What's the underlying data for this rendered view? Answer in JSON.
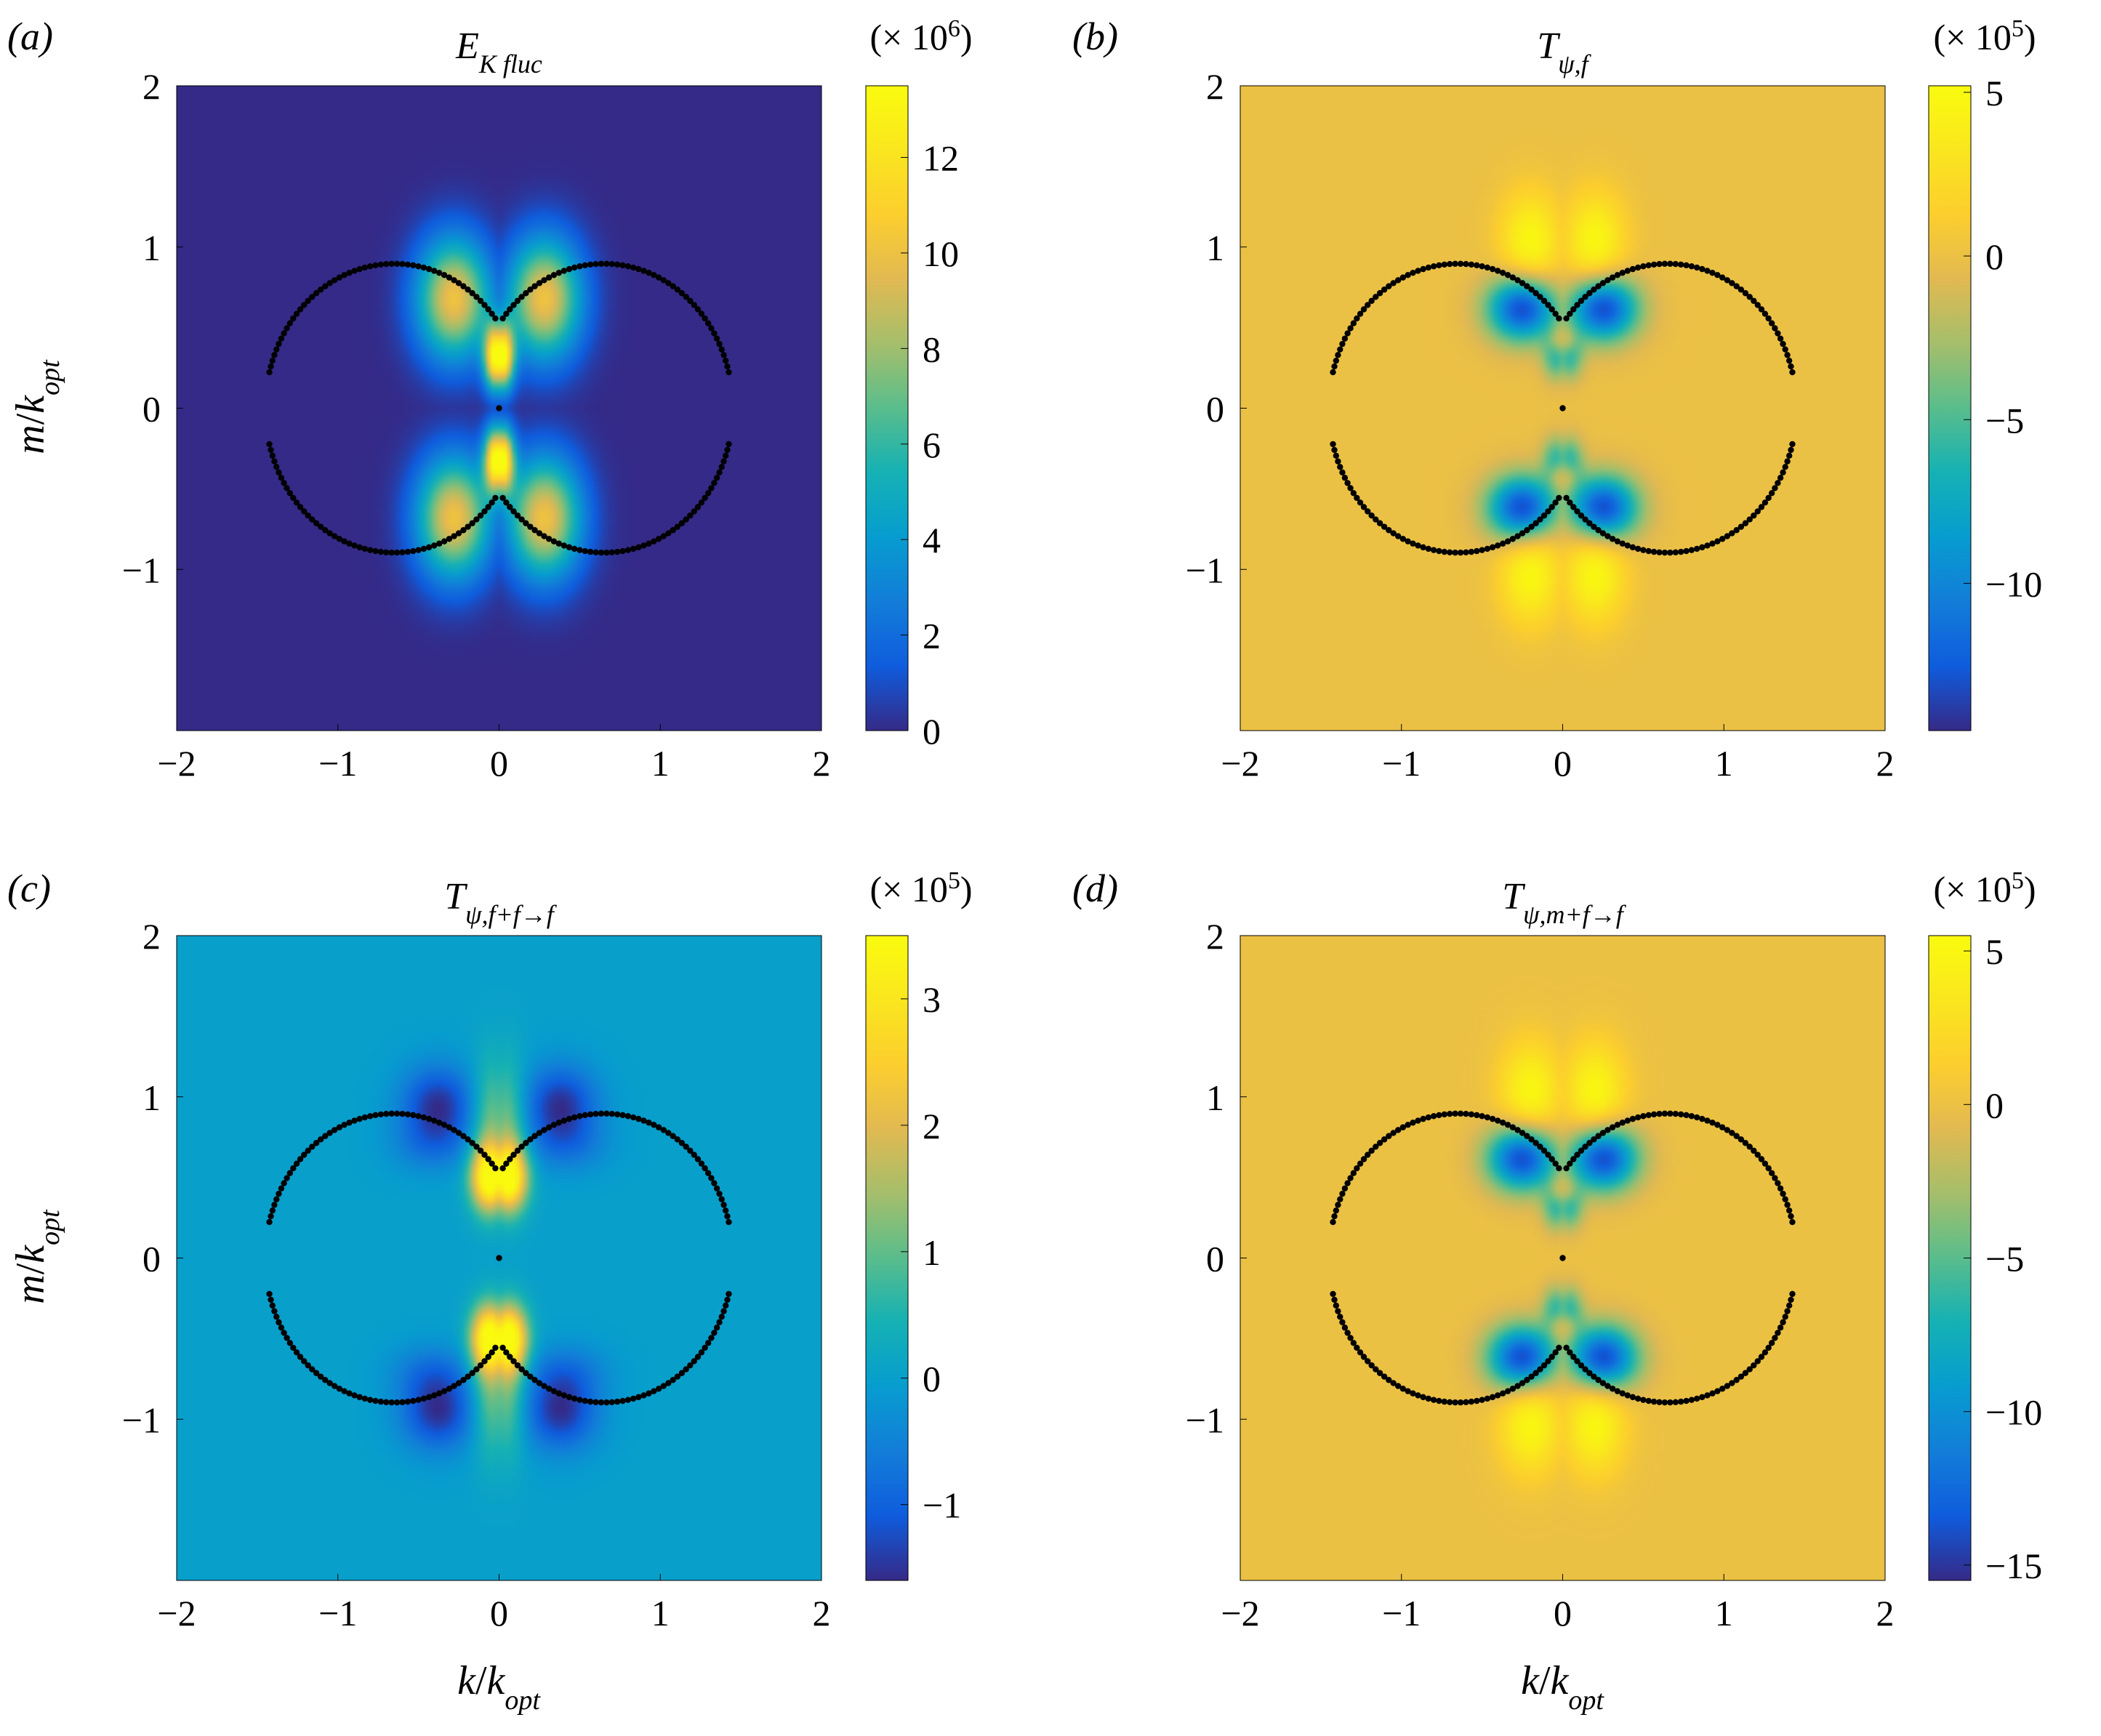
{
  "figure": {
    "x_axis_label": {
      "main": "k",
      "sep": "/",
      "kmain": "k",
      "ksub": "opt"
    },
    "y_axis_label": {
      "main": "m",
      "sep": "/",
      "kmain": "k",
      "ksub": "opt"
    }
  },
  "chart_data": [
    {
      "type": "heatmap",
      "panel_label": "(a)",
      "title": {
        "main": "E",
        "sub": "K fluc"
      },
      "xlim": [
        -2,
        2
      ],
      "ylim": [
        -2,
        2
      ],
      "xticks": [
        -2,
        -1,
        0,
        1,
        2
      ],
      "xtick_labels": [
        "−2",
        "−1",
        "0",
        "1",
        "2"
      ],
      "yticks": [
        -1,
        0,
        1,
        2
      ],
      "ytick_labels": [
        "−1",
        "0",
        "1",
        "2"
      ],
      "colorbar": {
        "multiplier_prefix": "(× 10",
        "multiplier_exp": "6",
        "multiplier_suffix": ")",
        "range": [
          0,
          13.5
        ],
        "ticks": [
          0,
          2,
          4,
          6,
          8,
          10,
          12
        ],
        "tick_labels": [
          "0",
          "2",
          "4",
          "6",
          "8",
          "10",
          "12"
        ]
      },
      "background_value": 0,
      "field": {
        "model": "lobes",
        "amplitude": 13.5,
        "pattern": "energy"
      },
      "resonance_curve": {
        "description": "black dotted circles",
        "center_k": 0.65,
        "radius": 0.8
      }
    },
    {
      "type": "heatmap",
      "panel_label": "(b)",
      "title": {
        "main": "T",
        "sub": "ψ,f"
      },
      "xlim": [
        -2,
        2
      ],
      "ylim": [
        -2,
        2
      ],
      "xticks": [
        -2,
        -1,
        0,
        1,
        2
      ],
      "xtick_labels": [
        "−2",
        "−1",
        "0",
        "1",
        "2"
      ],
      "yticks": [
        -1,
        0,
        1,
        2
      ],
      "ytick_labels": [
        "−1",
        "0",
        "1",
        "2"
      ],
      "colorbar": {
        "multiplier_prefix": "(× 10",
        "multiplier_exp": "5",
        "multiplier_suffix": ")",
        "range": [
          -14.5,
          5.2
        ],
        "ticks": [
          -10,
          -5,
          0,
          5
        ],
        "tick_labels": [
          "−10",
          "−5",
          "0",
          "5"
        ]
      },
      "background_value": 0,
      "field": {
        "model": "lobes",
        "negative_peak": -14.5,
        "positive_peak": 5.2,
        "pattern": "transfer"
      },
      "resonance_curve": {
        "description": "black dotted circles",
        "center_k": 0.65,
        "radius": 0.8
      }
    },
    {
      "type": "heatmap",
      "panel_label": "(c)",
      "title": {
        "main": "T",
        "sub": "ψ,f+f→f"
      },
      "xlim": [
        -2,
        2
      ],
      "ylim": [
        -2,
        2
      ],
      "xticks": [
        -2,
        -1,
        0,
        1,
        2
      ],
      "xtick_labels": [
        "−2",
        "−1",
        "0",
        "1",
        "2"
      ],
      "yticks": [
        -1,
        0,
        1,
        2
      ],
      "ytick_labels": [
        "−1",
        "0",
        "1",
        "2"
      ],
      "colorbar": {
        "multiplier_prefix": "(× 10",
        "multiplier_exp": "5",
        "multiplier_suffix": ")",
        "range": [
          -1.6,
          3.5
        ],
        "ticks": [
          -1,
          0,
          1,
          2,
          3
        ],
        "tick_labels": [
          "−1",
          "0",
          "1",
          "2",
          "3"
        ]
      },
      "background_value": 0,
      "field": {
        "model": "lobes",
        "negative_peak": -1.6,
        "positive_peak": 3.5,
        "pattern": "fff"
      },
      "resonance_curve": {
        "description": "black dotted circles",
        "center_k": 0.65,
        "radius": 0.8
      }
    },
    {
      "type": "heatmap",
      "panel_label": "(d)",
      "title": {
        "main": "T",
        "sub": "ψ,m+f→f"
      },
      "xlim": [
        -2,
        2
      ],
      "ylim": [
        -2,
        2
      ],
      "xticks": [
        -2,
        -1,
        0,
        1,
        2
      ],
      "xtick_labels": [
        "−2",
        "−1",
        "0",
        "1",
        "2"
      ],
      "yticks": [
        -1,
        0,
        1,
        2
      ],
      "ytick_labels": [
        "−1",
        "0",
        "1",
        "2"
      ],
      "colorbar": {
        "multiplier_prefix": "(× 10",
        "multiplier_exp": "5",
        "multiplier_suffix": ")",
        "range": [
          -15.5,
          5.5
        ],
        "ticks": [
          -15,
          -10,
          -5,
          0,
          5
        ],
        "tick_labels": [
          "−15",
          "−10",
          "−5",
          "0",
          "5"
        ]
      },
      "background_value": 0,
      "field": {
        "model": "lobes",
        "negative_peak": -15.5,
        "positive_peak": 5.5,
        "pattern": "transfer"
      },
      "resonance_curve": {
        "description": "black dotted circles",
        "center_k": 0.65,
        "radius": 0.8
      }
    }
  ]
}
